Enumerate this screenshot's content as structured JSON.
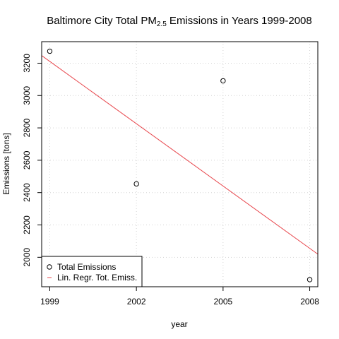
{
  "chart_data": {
    "type": "scatter",
    "title": {
      "prefix": "Baltimore City Total PM",
      "subscript": "2.5",
      "suffix": " Emissions in Years 1999-2008"
    },
    "xlabel": "year",
    "ylabel": "Emissions [tons]",
    "x_ticks": [
      1999,
      2002,
      2005,
      2008
    ],
    "y_ticks": [
      2000,
      2200,
      2400,
      2600,
      2800,
      3000,
      3200
    ],
    "xlim": [
      1998.72,
      2008.28
    ],
    "ylim": [
      1818,
      3333
    ],
    "grid": true,
    "legend_position": "bottom-left",
    "series": [
      {
        "name": "Total Emissions",
        "kind": "points",
        "marker": "open-circle",
        "color": "#000000",
        "x": [
          1999,
          2002,
          2005,
          2008
        ],
        "y": [
          3274,
          2454,
          3091,
          1862
        ]
      },
      {
        "name": "Lin. Regr. Tot. Emiss.",
        "kind": "line",
        "color": "#e8474d",
        "intercept_at_1999": 3211,
        "slope": -128.4
      }
    ]
  }
}
